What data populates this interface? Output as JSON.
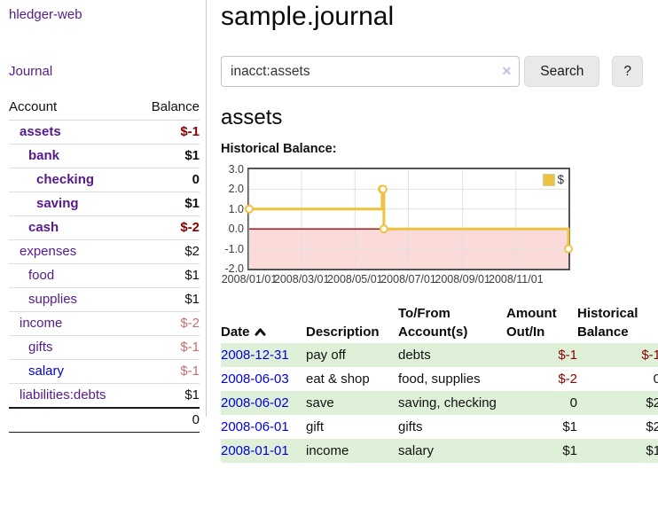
{
  "app": {
    "title": "hledger-web",
    "nav_journal": "Journal"
  },
  "colors": {
    "link_purple": "#551a8b",
    "link_blue": "#0000e0",
    "negative_strong": "#8b0000",
    "negative_soft": "#c36f6f",
    "row_green": "#dff0d8",
    "chart_line": "#edc240",
    "chart_zero_line": "#a40000",
    "chart_negative_fill": "#fbdada",
    "chart_border": "#545454"
  },
  "sidebar": {
    "columns": {
      "account": "Account",
      "balance": "Balance"
    },
    "accounts": [
      {
        "name": "assets",
        "balance": "$-1"
      },
      {
        "name": "bank",
        "balance": "$1"
      },
      {
        "name": "checking",
        "balance": "0"
      },
      {
        "name": "saving",
        "balance": "$1"
      },
      {
        "name": "cash",
        "balance": "$-2"
      },
      {
        "name": "expenses",
        "balance": "$2"
      },
      {
        "name": "food",
        "balance": "$1"
      },
      {
        "name": "supplies",
        "balance": "$1"
      },
      {
        "name": "income",
        "balance": "$-2"
      },
      {
        "name": "gifts",
        "balance": "$-1"
      },
      {
        "name": "salary",
        "balance": "$-1"
      },
      {
        "name": "liabilities:debts",
        "balance": "$1"
      }
    ],
    "total": "0"
  },
  "header": {
    "title": "sample.journal"
  },
  "search": {
    "value": "inacct:assets",
    "clear_icon": "✕",
    "button_label": "Search",
    "help_label": "?"
  },
  "account_page": {
    "heading": "assets",
    "chart_label": "Historical Balance:"
  },
  "chart_data": {
    "type": "line",
    "style": "step",
    "title": "Historical Balance:",
    "series": [
      {
        "name": "$",
        "color": "#edc240",
        "points": [
          [
            "2008-01-01",
            1
          ],
          [
            "2008-06-01",
            2
          ],
          [
            "2008-06-02",
            2
          ],
          [
            "2008-06-03",
            0
          ],
          [
            "2008-12-31",
            -1
          ]
        ]
      }
    ],
    "x_range": [
      "2008-01-01",
      "2008-12-31"
    ],
    "ylim": [
      -2,
      3
    ],
    "y_ticks": [
      "3.0",
      "2.0",
      "1.0",
      "0.0",
      "-1.0",
      "-2.0"
    ],
    "x_ticks": [
      "2008/01/01",
      "2008/03/01",
      "2008/05/01",
      "2008/07/01",
      "2008/09/01",
      "2008/11/01"
    ],
    "grid": true,
    "legend_position": "top-right",
    "zero_line_color": "#a40000",
    "negative_region_color": "#fbdada",
    "grid_color": "#e0e0e0"
  },
  "register": {
    "headers": {
      "date": "Date",
      "description": "Description",
      "accounts": "To/From Account(s)",
      "amount": "Amount Out/In",
      "balance": "Historical Balance"
    },
    "rows": [
      {
        "date": "2008-12-31",
        "description": "pay off",
        "accounts": "debts",
        "amount": "$-1",
        "balance": "$-1"
      },
      {
        "date": "2008-06-03",
        "description": "eat & shop",
        "accounts": "food, supplies",
        "amount": "$-2",
        "balance": "0"
      },
      {
        "date": "2008-06-02",
        "description": "save",
        "accounts": "saving, checking",
        "amount": "0",
        "balance": "$2"
      },
      {
        "date": "2008-06-01",
        "description": "gift",
        "accounts": "gifts",
        "amount": "$1",
        "balance": "$2"
      },
      {
        "date": "2008-01-01",
        "description": "income",
        "accounts": "salary",
        "amount": "$1",
        "balance": "$1"
      }
    ]
  }
}
